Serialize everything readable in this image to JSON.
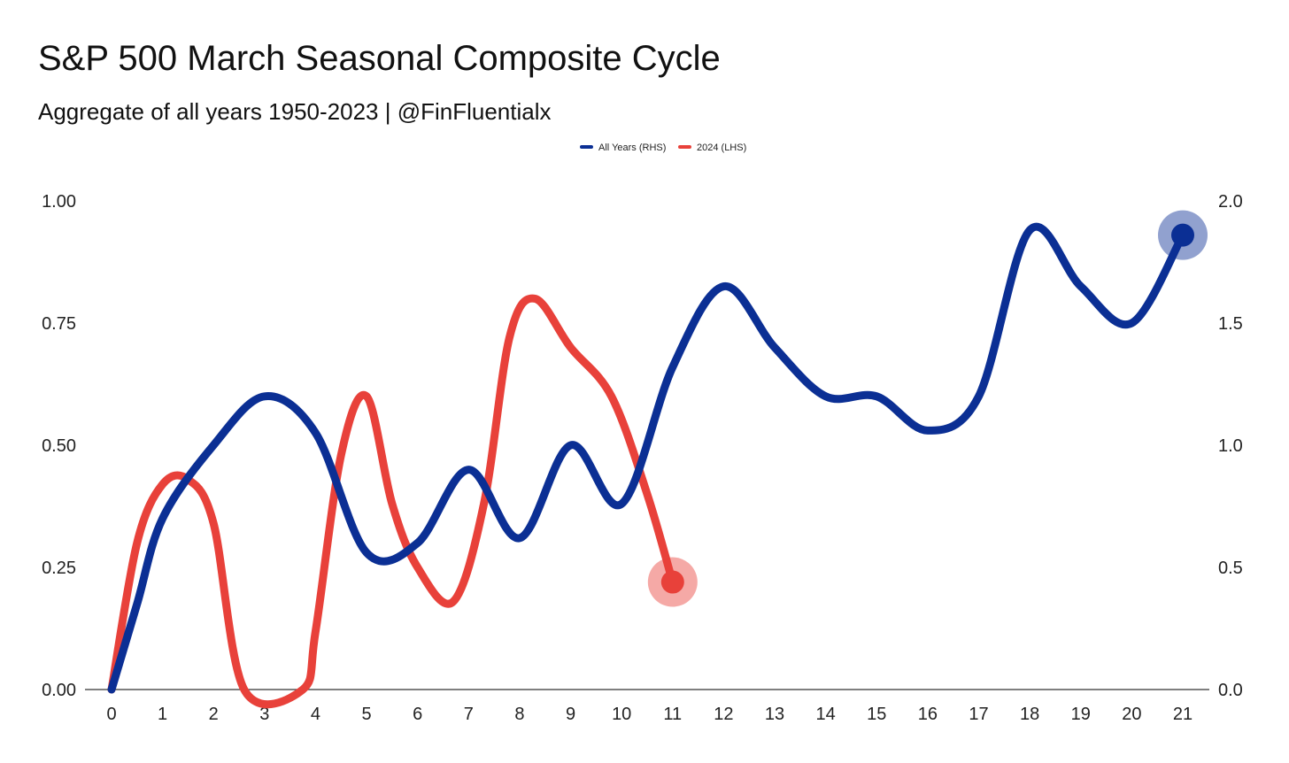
{
  "chart_data": {
    "type": "line",
    "title": "S&P 500 March Seasonal Composite Cycle",
    "subtitle": "Aggregate of all years 1950-2023 | @FinFluentialx",
    "x": [
      0,
      1,
      2,
      3,
      4,
      5,
      6,
      7,
      8,
      9,
      10,
      11,
      12,
      13,
      14,
      15,
      16,
      17,
      18,
      19,
      20,
      21
    ],
    "x_ticks": [
      "0",
      "1",
      "2",
      "3",
      "4",
      "5",
      "6",
      "7",
      "8",
      "9",
      "10",
      "11",
      "12",
      "13",
      "14",
      "15",
      "16",
      "17",
      "18",
      "19",
      "20",
      "21"
    ],
    "xlim": [
      0,
      21
    ],
    "y_left": {
      "lim": [
        0,
        1
      ],
      "ticks": [
        "0.00",
        "0.25",
        "0.50",
        "0.75",
        "1.00"
      ],
      "tick_values": [
        0,
        0.25,
        0.5,
        0.75,
        1.0
      ]
    },
    "y_right": {
      "lim": [
        0,
        2
      ],
      "ticks": [
        "0.0",
        "0.5",
        "1.0",
        "1.5",
        "2.0"
      ],
      "tick_values": [
        0,
        0.5,
        1.0,
        1.5,
        2.0
      ]
    },
    "legend_position": "top-center",
    "grid": false,
    "series": [
      {
        "name": "All Years (RHS)",
        "axis": "right",
        "color": "#0b2f94",
        "points": [
          [
            0,
            0.0
          ],
          [
            0.5,
            0.35
          ],
          [
            1,
            0.7
          ],
          [
            2,
            1.0
          ],
          [
            3,
            1.2
          ],
          [
            4,
            1.05
          ],
          [
            5,
            0.56
          ],
          [
            6,
            0.6
          ],
          [
            7,
            0.9
          ],
          [
            8,
            0.62
          ],
          [
            9,
            1.0
          ],
          [
            10,
            0.76
          ],
          [
            11,
            1.32
          ],
          [
            12,
            1.65
          ],
          [
            13,
            1.4
          ],
          [
            14,
            1.2
          ],
          [
            15,
            1.2
          ],
          [
            16,
            1.06
          ],
          [
            17,
            1.2
          ],
          [
            18,
            1.88
          ],
          [
            19,
            1.65
          ],
          [
            20,
            1.5
          ],
          [
            21,
            1.86
          ]
        ]
      },
      {
        "name": "2024 (LHS)",
        "axis": "left",
        "color": "#e8413a",
        "points": [
          [
            0,
            0.0
          ],
          [
            0.5,
            0.3
          ],
          [
            1,
            0.42
          ],
          [
            1.5,
            0.43
          ],
          [
            2,
            0.34
          ],
          [
            2.6,
            0.0
          ],
          [
            3.75,
            0.0
          ],
          [
            4,
            0.12
          ],
          [
            4.5,
            0.48
          ],
          [
            5,
            0.6
          ],
          [
            5.5,
            0.38
          ],
          [
            6,
            0.25
          ],
          [
            6.7,
            0.18
          ],
          [
            7.3,
            0.38
          ],
          [
            7.8,
            0.72
          ],
          [
            8.3,
            0.8
          ],
          [
            9,
            0.7
          ],
          [
            9.8,
            0.6
          ],
          [
            10.5,
            0.4
          ],
          [
            11,
            0.22
          ]
        ]
      }
    ]
  }
}
